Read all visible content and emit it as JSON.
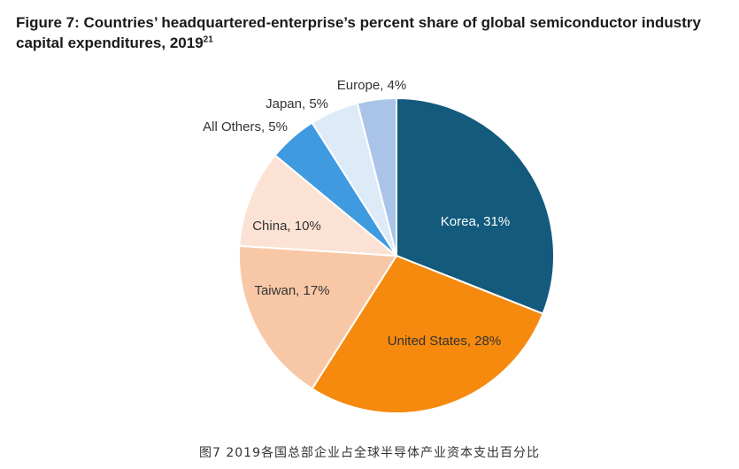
{
  "figure": {
    "title": "Figure 7: Countries’ headquartered-enterprise’s percent share of global semiconductor industry capital expenditures, 2019",
    "footnote": "21",
    "caption": "图7 2019各国总部企业占全球半导体产业资本支出百分比"
  },
  "chart_data": {
    "type": "pie",
    "title": "Figure 7: Countries’ headquartered-enterprise’s percent share of global semiconductor industry capital expenditures, 2019",
    "slices": [
      {
        "name": "Korea",
        "value": 31,
        "label": "Korea, 31%",
        "color": "#135a7c"
      },
      {
        "name": "United States",
        "value": 28,
        "label": "United States, 28%",
        "color": "#f58a0e"
      },
      {
        "name": "Taiwan",
        "value": 17,
        "label": "Taiwan, 17%",
        "color": "#f8c8a6"
      },
      {
        "name": "China",
        "value": 10,
        "label": "China, 10%",
        "color": "#fce2d4"
      },
      {
        "name": "All Others",
        "value": 5,
        "label": "All Others, 5%",
        "color": "#3f9ae0"
      },
      {
        "name": "Japan",
        "value": 5,
        "label": "Japan, 5%",
        "color": "#ddeaf7"
      },
      {
        "name": "Europe",
        "value": 4,
        "label": "Europe, 4%",
        "color": "#a9c4e8"
      }
    ],
    "start_angle": "12 o'clock",
    "direction": "clockwise"
  }
}
